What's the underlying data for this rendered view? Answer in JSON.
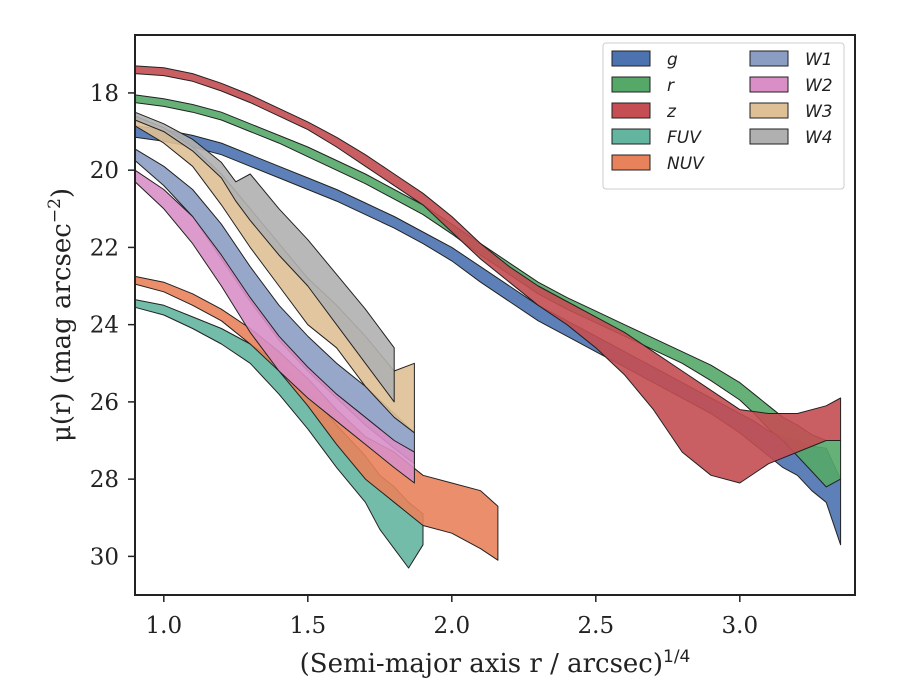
{
  "chart_data": {
    "type": "area",
    "title": "",
    "xlabel": "(Semi-major axis r / arcsec)",
    "xlabel_exponent": "1/4",
    "ylabel": "μ(r) (mag arcsec",
    "ylabel_exponent": "−2",
    "ylabel_tail": ")",
    "xlim": [
      0.9,
      3.4
    ],
    "ylim": [
      31.0,
      16.5
    ],
    "y_inverted": true,
    "xticks": [
      1.0,
      1.5,
      2.0,
      2.5,
      3.0
    ],
    "xtick_labels": [
      "1.0",
      "1.5",
      "2.0",
      "2.5",
      "3.0"
    ],
    "yticks": [
      18,
      20,
      22,
      24,
      26,
      28,
      30
    ],
    "ytick_labels": [
      "18",
      "20",
      "22",
      "24",
      "26",
      "28",
      "30"
    ],
    "grid": false,
    "legend_position": "top-right",
    "legend_columns": 2,
    "series": [
      {
        "name": "g",
        "color": "#4c72b0",
        "x": [
          0.9,
          1.0,
          1.1,
          1.2,
          1.3,
          1.4,
          1.5,
          1.6,
          1.7,
          1.8,
          1.9,
          2.0,
          2.1,
          2.2,
          2.3,
          2.4,
          2.5,
          2.6,
          2.7,
          2.8,
          2.9,
          3.0,
          3.05,
          3.1,
          3.15,
          3.2,
          3.25,
          3.3,
          3.35
        ],
        "lower": [
          18.85,
          18.95,
          19.1,
          19.3,
          19.6,
          19.9,
          20.2,
          20.5,
          20.85,
          21.2,
          21.6,
          22.0,
          22.5,
          23.0,
          23.5,
          23.9,
          24.3,
          24.7,
          25.1,
          25.5,
          25.9,
          26.3,
          26.5,
          26.75,
          26.9,
          27.0,
          27.15,
          27.2,
          28.0
        ],
        "upper": [
          19.15,
          19.25,
          19.4,
          19.6,
          19.9,
          20.2,
          20.5,
          20.8,
          21.15,
          21.5,
          21.9,
          22.35,
          22.9,
          23.4,
          23.9,
          24.3,
          24.7,
          25.1,
          25.5,
          25.9,
          26.3,
          26.8,
          27.1,
          27.4,
          27.7,
          27.9,
          28.3,
          28.6,
          29.7
        ]
      },
      {
        "name": "r",
        "color": "#55a868",
        "x": [
          0.9,
          1.0,
          1.1,
          1.2,
          1.3,
          1.4,
          1.5,
          1.6,
          1.7,
          1.8,
          1.9,
          2.0,
          2.1,
          2.2,
          2.3,
          2.4,
          2.5,
          2.6,
          2.7,
          2.8,
          2.9,
          3.0,
          3.05,
          3.1,
          3.15,
          3.2,
          3.25,
          3.3,
          3.35
        ],
        "lower": [
          18.05,
          18.15,
          18.3,
          18.5,
          18.8,
          19.1,
          19.4,
          19.75,
          20.1,
          20.5,
          20.9,
          21.4,
          21.9,
          22.4,
          22.9,
          23.3,
          23.65,
          24.0,
          24.35,
          24.7,
          25.05,
          25.5,
          25.8,
          26.1,
          26.4,
          26.6,
          26.85,
          27.0,
          27.0
        ],
        "upper": [
          18.25,
          18.35,
          18.5,
          18.7,
          19.0,
          19.3,
          19.65,
          20.0,
          20.35,
          20.75,
          21.15,
          21.65,
          22.2,
          22.7,
          23.2,
          23.6,
          23.95,
          24.3,
          24.65,
          25.0,
          25.45,
          25.95,
          26.3,
          26.7,
          27.0,
          27.4,
          27.8,
          28.2,
          28.0
        ]
      },
      {
        "name": "z",
        "color": "#c44e52",
        "x": [
          0.9,
          1.0,
          1.1,
          1.2,
          1.3,
          1.4,
          1.5,
          1.6,
          1.7,
          1.8,
          1.9,
          2.0,
          2.1,
          2.2,
          2.3,
          2.4,
          2.5,
          2.6,
          2.7,
          2.8,
          2.9,
          3.0,
          3.1,
          3.2,
          3.3,
          3.35
        ],
        "lower": [
          17.3,
          17.35,
          17.5,
          17.75,
          18.05,
          18.4,
          18.75,
          19.15,
          19.6,
          20.1,
          20.6,
          21.2,
          21.9,
          22.5,
          23.0,
          23.4,
          23.8,
          24.2,
          24.7,
          25.2,
          25.7,
          26.2,
          26.3,
          26.3,
          26.1,
          25.9
        ],
        "upper": [
          17.5,
          17.55,
          17.7,
          17.95,
          18.25,
          18.6,
          18.95,
          19.4,
          19.9,
          20.4,
          20.9,
          21.6,
          22.3,
          22.9,
          23.5,
          24.0,
          24.6,
          25.3,
          26.2,
          27.3,
          27.9,
          28.1,
          27.6,
          27.3,
          27.0,
          27.0
        ]
      },
      {
        "name": "FUV",
        "color": "#64b5a0",
        "x": [
          0.9,
          1.0,
          1.1,
          1.2,
          1.3,
          1.4,
          1.5,
          1.6,
          1.7,
          1.75,
          1.8,
          1.85,
          1.9
        ],
        "lower": [
          23.35,
          23.5,
          23.8,
          24.1,
          24.5,
          25.0,
          25.7,
          26.6,
          27.4,
          27.9,
          28.2,
          28.6,
          28.9
        ],
        "upper": [
          23.55,
          23.75,
          24.1,
          24.5,
          25.0,
          25.8,
          26.7,
          27.7,
          28.6,
          29.3,
          29.8,
          30.3,
          29.7
        ]
      },
      {
        "name": "NUV",
        "color": "#e8825b",
        "x": [
          0.9,
          1.0,
          1.1,
          1.2,
          1.3,
          1.4,
          1.5,
          1.6,
          1.7,
          1.8,
          1.9,
          2.0,
          2.1,
          2.16
        ],
        "lower": [
          22.75,
          22.9,
          23.2,
          23.6,
          24.1,
          24.7,
          25.4,
          26.2,
          26.9,
          27.3,
          27.9,
          28.1,
          28.3,
          28.7
        ],
        "upper": [
          22.95,
          23.15,
          23.5,
          23.9,
          24.5,
          25.2,
          26.1,
          27.1,
          28.0,
          28.6,
          29.2,
          29.4,
          29.8,
          30.1
        ]
      },
      {
        "name": "W1",
        "color": "#8c9dc4",
        "x": [
          0.9,
          1.0,
          1.1,
          1.2,
          1.3,
          1.4,
          1.5,
          1.6,
          1.7,
          1.8,
          1.87
        ],
        "lower": [
          19.45,
          19.9,
          20.5,
          21.4,
          22.5,
          23.5,
          24.3,
          25.0,
          25.6,
          26.3,
          26.8
        ],
        "upper": [
          19.75,
          20.4,
          21.2,
          22.3,
          23.4,
          24.4,
          25.2,
          25.9,
          26.6,
          27.2,
          27.6
        ]
      },
      {
        "name": "W2",
        "color": "#d98fc6",
        "x": [
          0.9,
          1.0,
          1.1,
          1.2,
          1.3,
          1.4,
          1.5,
          1.6,
          1.7,
          1.8,
          1.87
        ],
        "lower": [
          20.0,
          20.5,
          21.2,
          22.2,
          23.3,
          24.3,
          25.1,
          25.8,
          26.4,
          27.0,
          27.3
        ],
        "upper": [
          20.3,
          21.0,
          21.9,
          23.0,
          24.2,
          25.2,
          25.9,
          26.5,
          27.1,
          27.7,
          28.1
        ]
      },
      {
        "name": "W3",
        "color": "#dfc096",
        "x": [
          0.9,
          1.0,
          1.1,
          1.2,
          1.3,
          1.4,
          1.5,
          1.6,
          1.7,
          1.8,
          1.87
        ],
        "lower": [
          18.6,
          18.9,
          19.4,
          20.1,
          21.0,
          21.9,
          22.8,
          23.5,
          24.3,
          25.2,
          25.0
        ],
        "upper": [
          18.85,
          19.3,
          19.9,
          20.9,
          22.0,
          23.0,
          24.0,
          24.6,
          25.6,
          26.4,
          26.8
        ]
      },
      {
        "name": "W4",
        "color": "#b0b0b0",
        "x": [
          0.9,
          1.0,
          1.1,
          1.2,
          1.25,
          1.3,
          1.4,
          1.5,
          1.6,
          1.7,
          1.8
        ],
        "lower": [
          18.5,
          18.8,
          19.2,
          19.8,
          20.3,
          20.1,
          21.0,
          21.8,
          22.7,
          23.6,
          24.6
        ],
        "upper": [
          18.7,
          19.0,
          19.5,
          20.2,
          20.8,
          21.3,
          22.2,
          23.0,
          24.0,
          25.0,
          26.0
        ]
      }
    ]
  }
}
